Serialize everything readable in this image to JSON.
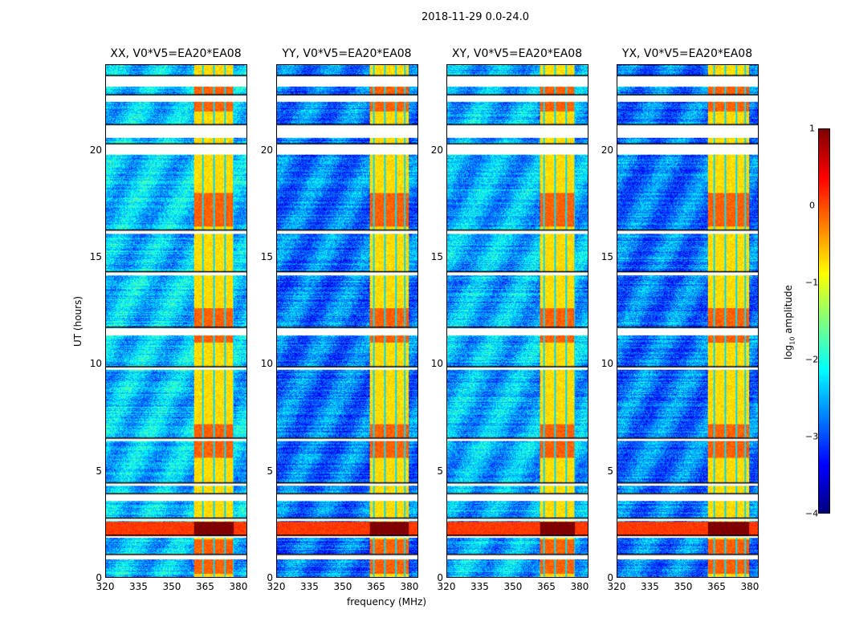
{
  "chart_data": {
    "type": "heatmap",
    "title": "2018-11-29 0.0-24.0",
    "xlabel": "frequency (MHz)",
    "ylabel": "UT (hours)",
    "xlim": [
      320,
      384
    ],
    "ylim": [
      0,
      24
    ],
    "xticks": [
      "320",
      "335",
      "350",
      "365",
      "380"
    ],
    "xtick_values": [
      320,
      335,
      350,
      365,
      380
    ],
    "yticks": [
      "0",
      "5",
      "10",
      "15",
      "20"
    ],
    "ytick_values": [
      0,
      5,
      10,
      15,
      20
    ],
    "panels": [
      {
        "title": "XX, V0*V5=EA20*EA08",
        "rfi_band_mhz": [
          360,
          378
        ],
        "baseline_log_amp": -2.4
      },
      {
        "title": "YY, V0*V5=EA20*EA08",
        "rfi_band_mhz": [
          362,
          380
        ],
        "baseline_log_amp": -2.8
      },
      {
        "title": "XY, V0*V5=EA20*EA08",
        "rfi_band_mhz": [
          362,
          378
        ],
        "baseline_log_amp": -2.5
      },
      {
        "title": "YX, V0*V5=EA20*EA08",
        "rfi_band_mhz": [
          361,
          380
        ],
        "baseline_log_amp": -2.8
      }
    ],
    "rfi_channel_gaps_mhz": [
      364,
      369,
      374,
      378
    ],
    "strong_rfi_hours": [
      1.9,
      2.6
    ],
    "flagged_hours": [
      [
        23.0,
        23.5
      ],
      [
        22.3,
        22.6
      ],
      [
        20.6,
        21.2
      ],
      [
        19.8,
        20.3
      ],
      [
        16.1,
        16.25
      ],
      [
        14.15,
        14.3
      ],
      [
        11.35,
        11.7
      ],
      [
        9.75,
        9.85
      ],
      [
        6.4,
        6.5
      ],
      [
        4.3,
        4.4
      ],
      [
        3.6,
        3.9
      ],
      [
        2.65,
        2.75
      ],
      [
        1.85,
        1.95
      ],
      [
        0.85,
        1.05
      ]
    ],
    "colorbar": {
      "label": "log10 amplitude",
      "ticks": [
        "1",
        "0",
        "−1",
        "−2",
        "−3",
        "−4"
      ],
      "tick_values": [
        1,
        0,
        -1,
        -2,
        -3,
        -4
      ],
      "range": [
        -4,
        1
      ],
      "colormap": "jet"
    }
  }
}
